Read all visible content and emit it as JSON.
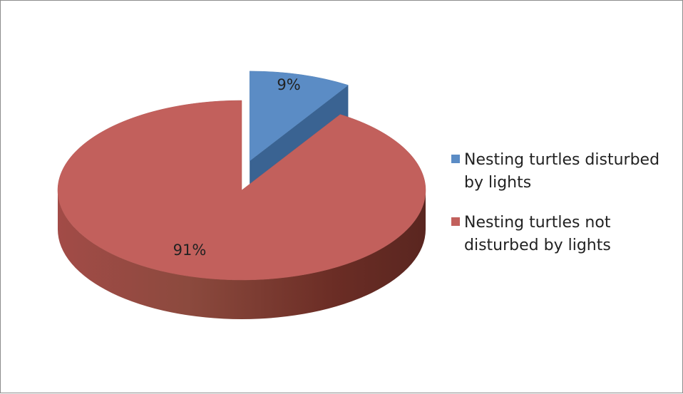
{
  "chart_data": {
    "type": "pie",
    "style": "3d-exploded",
    "slices": [
      {
        "name": "Nesting turtles disturbed by lights",
        "value": 9,
        "label": "9%",
        "color": "#5b8cc5",
        "exploded": true
      },
      {
        "name": "Nesting turtles not disturbed by lights",
        "value": 91,
        "label": "91%",
        "color": "#c2605c",
        "exploded": false
      }
    ],
    "legend_position": "right"
  }
}
